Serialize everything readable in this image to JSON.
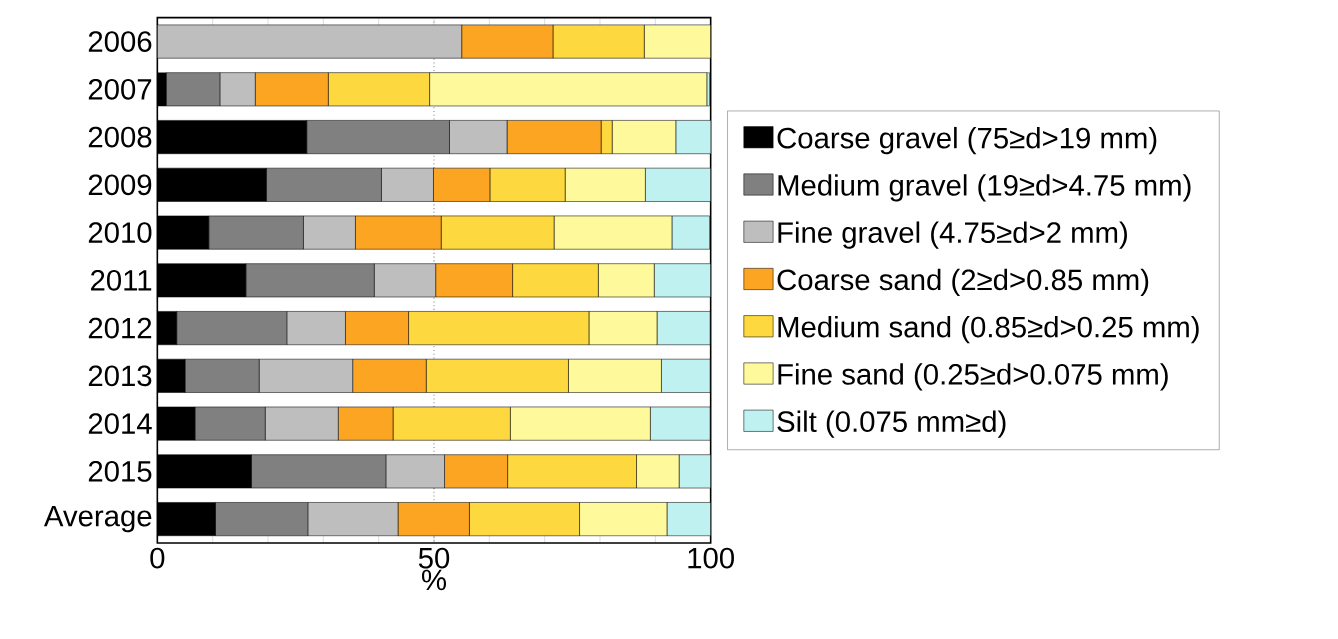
{
  "chart_data": {
    "type": "bar",
    "orientation": "horizontal",
    "stacked": true,
    "xlabel": "%",
    "categories": [
      "2006",
      "2007",
      "2008",
      "2009",
      "2010",
      "2011",
      "2012",
      "2013",
      "2014",
      "2015",
      "Average"
    ],
    "series": [
      {
        "name": "Coarse gravel (75≥d>19 mm)",
        "color": "#000000",
        "values": [
          0,
          1.6,
          27.0,
          19.7,
          9.3,
          16.0,
          3.5,
          5.0,
          6.8,
          17.0,
          10.5
        ]
      },
      {
        "name": "Medium gravel (19≥d>4.75 mm)",
        "color": "#808080",
        "values": [
          0,
          9.7,
          25.8,
          20.8,
          17.1,
          23.2,
          19.9,
          13.4,
          12.7,
          24.3,
          16.7
        ]
      },
      {
        "name": "Fine gravel (4.75≥d>2 mm)",
        "color": "#bebebe",
        "values": [
          55.0,
          6.4,
          10.4,
          9.4,
          9.4,
          11.1,
          10.6,
          16.9,
          13.2,
          10.6,
          16.3
        ]
      },
      {
        "name": "Coarse sand (2≥d>0.85 mm)",
        "color": "#fca522",
        "values": [
          16.5,
          13.2,
          17.0,
          10.2,
          15.5,
          13.9,
          11.4,
          13.3,
          9.9,
          11.4,
          12.9
        ]
      },
      {
        "name": "Medium sand (0.85≥d>0.25 mm)",
        "color": "#fdd83e",
        "values": [
          16.5,
          18.3,
          2.0,
          13.6,
          20.4,
          15.5,
          32.6,
          25.7,
          21.2,
          23.3,
          19.9
        ]
      },
      {
        "name": "Fine sand (0.25≥d>0.075 mm)",
        "color": "#fef99a",
        "values": [
          12.0,
          50.1,
          11.5,
          14.5,
          21.3,
          10.1,
          12.3,
          16.8,
          25.3,
          7.7,
          15.8
        ]
      },
      {
        "name": "Silt (0.075 mm≥d)",
        "color": "#bff1f1",
        "values": [
          0,
          0.5,
          6.4,
          11.8,
          6.8,
          10.2,
          9.6,
          8.8,
          10.8,
          5.7,
          7.9
        ]
      }
    ],
    "xlim": [
      0,
      100
    ],
    "xticks": [
      0,
      {
        "value": 10,
        "label": null
      },
      {
        "value": 20,
        "label": null
      },
      {
        "value": 30,
        "label": null
      },
      {
        "value": 40,
        "label": null
      },
      50,
      {
        "value": 60,
        "label": null
      },
      {
        "value": 70,
        "label": null
      },
      {
        "value": 80,
        "label": null
      },
      {
        "value": 90,
        "label": null
      },
      100
    ],
    "ref_lines": [
      {
        "axis": "x",
        "value": 50,
        "color": "#808080",
        "line_style": "dotted"
      }
    ],
    "legend": "right"
  }
}
